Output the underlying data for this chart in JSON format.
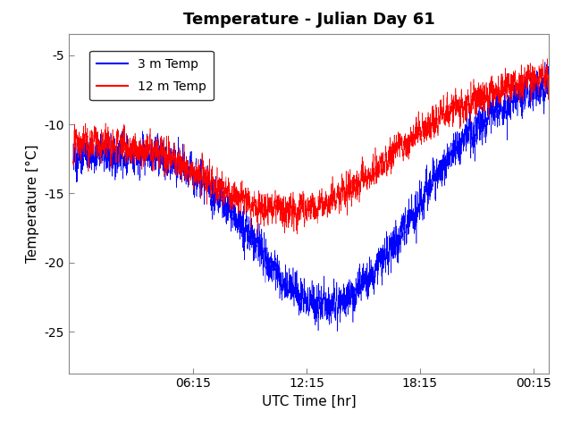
{
  "title": "Temperature - Julian Day 61",
  "xlabel": "UTC Time [hr]",
  "ylabel": "Temperature [°C]",
  "legend_3m": "3 m Temp",
  "legend_12m": "12 m Temp",
  "color_3m": "#0000FF",
  "color_12m": "#FF0000",
  "xtick_labels": [
    "06:15",
    "12:15",
    "18:15",
    "00:15"
  ],
  "xtick_positions": [
    0.265,
    0.515,
    0.765,
    1.015
  ],
  "ylim": [
    -28.0,
    -3.5
  ],
  "yticks": [
    -25,
    -20,
    -15,
    -10,
    -5
  ],
  "xlim": [
    -0.01,
    1.05
  ],
  "n_points": 4000,
  "noise_amplitude_3m": 0.55,
  "noise_amplitude_12m": 0.45,
  "background_color": "#ffffff",
  "linewidth": 0.4,
  "title_fontsize": 13,
  "axis_fontsize": 11,
  "tick_fontsize": 10
}
